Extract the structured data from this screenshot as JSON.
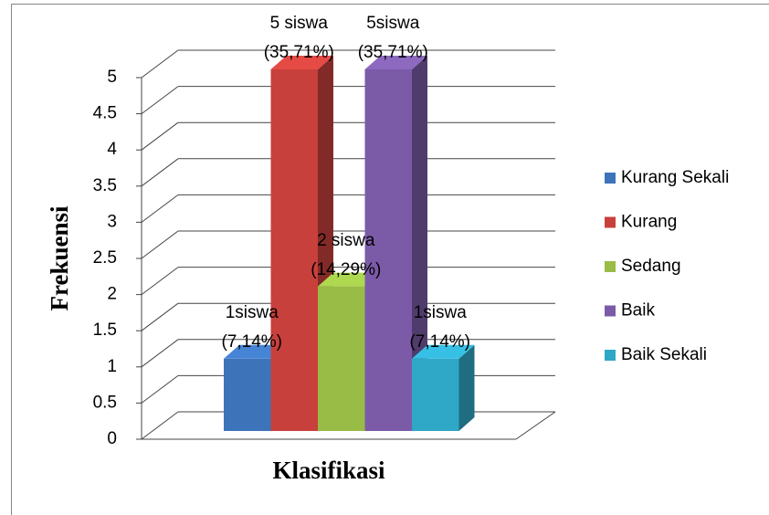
{
  "chart_data": {
    "type": "bar3d",
    "xlabel": "Klasifikasi",
    "ylabel": "Frekuensi",
    "categories": [
      null
    ],
    "series": [
      {
        "name": "Kurang Sekali",
        "color": "#3d73b9",
        "values": [
          1
        ],
        "value_labels": [
          "1siswa\n(7,14%)"
        ]
      },
      {
        "name": "Kurang",
        "color": "#c8403c",
        "values": [
          5
        ],
        "value_labels": [
          "5 siswa\n(35,71%)"
        ]
      },
      {
        "name": "Sedang",
        "color": "#98bc46",
        "values": [
          2
        ],
        "value_labels": [
          "2 siswa\n(14,29%)"
        ]
      },
      {
        "name": "Baik",
        "color": "#7b5ba7",
        "values": [
          5
        ],
        "value_labels": [
          "5siswa\n(35,71%)"
        ]
      },
      {
        "name": "Baik Sekali",
        "color": "#2fa7c7",
        "values": [
          1
        ],
        "value_labels": [
          "1siswa\n(7,14%)"
        ]
      }
    ],
    "ylim": [
      0,
      5
    ],
    "yticks": [
      0,
      0.5,
      1,
      1.5,
      2,
      2.5,
      3,
      3.5,
      4,
      4.5,
      5
    ],
    "grid": true,
    "legend": "right"
  }
}
